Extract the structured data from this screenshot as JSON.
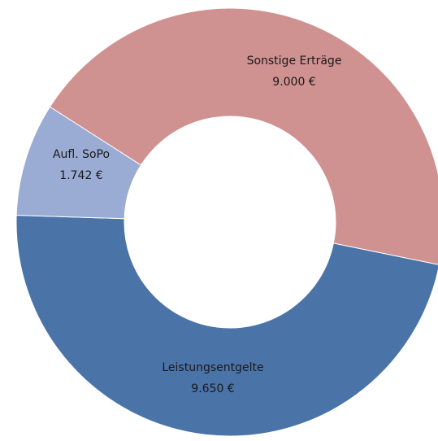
{
  "chart_data": {
    "type": "donut",
    "categories": [
      "Leistungsentgelte",
      "Aufl. SoPo",
      "Sonstige Erträge"
    ],
    "values": [
      9650,
      1742,
      9000
    ],
    "value_labels": [
      "9.650 €",
      "1.742 €",
      "9.000 €"
    ],
    "colors": [
      "#4a73a8",
      "#9aabd4",
      "#d09191"
    ]
  }
}
